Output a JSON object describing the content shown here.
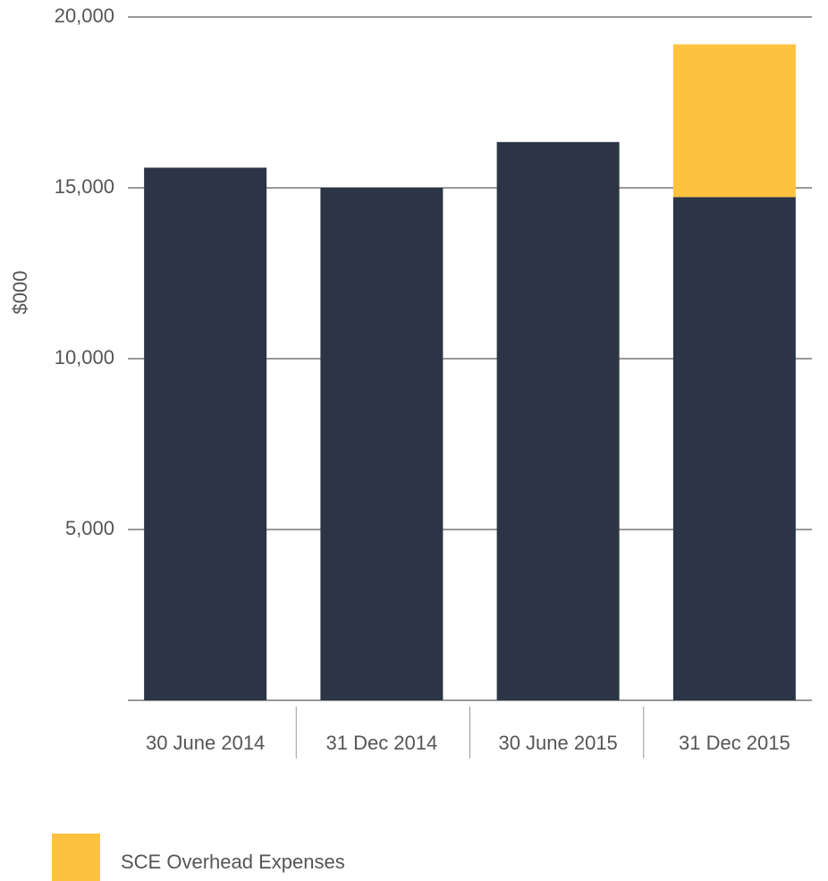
{
  "chart_data": {
    "type": "bar",
    "stacked": true,
    "y_label": "$000",
    "categories": [
      "30 June 2014",
      "31 Dec 2014",
      "30 June 2015",
      "31 Dec 2015"
    ],
    "series": [
      {
        "color": "#2b3545",
        "values": [
          15590,
          15000,
          16340,
          14730
        ]
      },
      {
        "name": "SCE Overhead Expenses",
        "color": "#fdc23e",
        "values": [
          null,
          null,
          null,
          4470
        ]
      }
    ],
    "ylim": [
      0,
      20000
    ],
    "yticks": [
      {
        "value": 5000,
        "label": "5,000"
      },
      {
        "value": 10000,
        "label": "10,000"
      },
      {
        "value": 15000,
        "label": "15,000"
      },
      {
        "value": 20000,
        "label": "20,000"
      }
    ],
    "grid": true
  }
}
